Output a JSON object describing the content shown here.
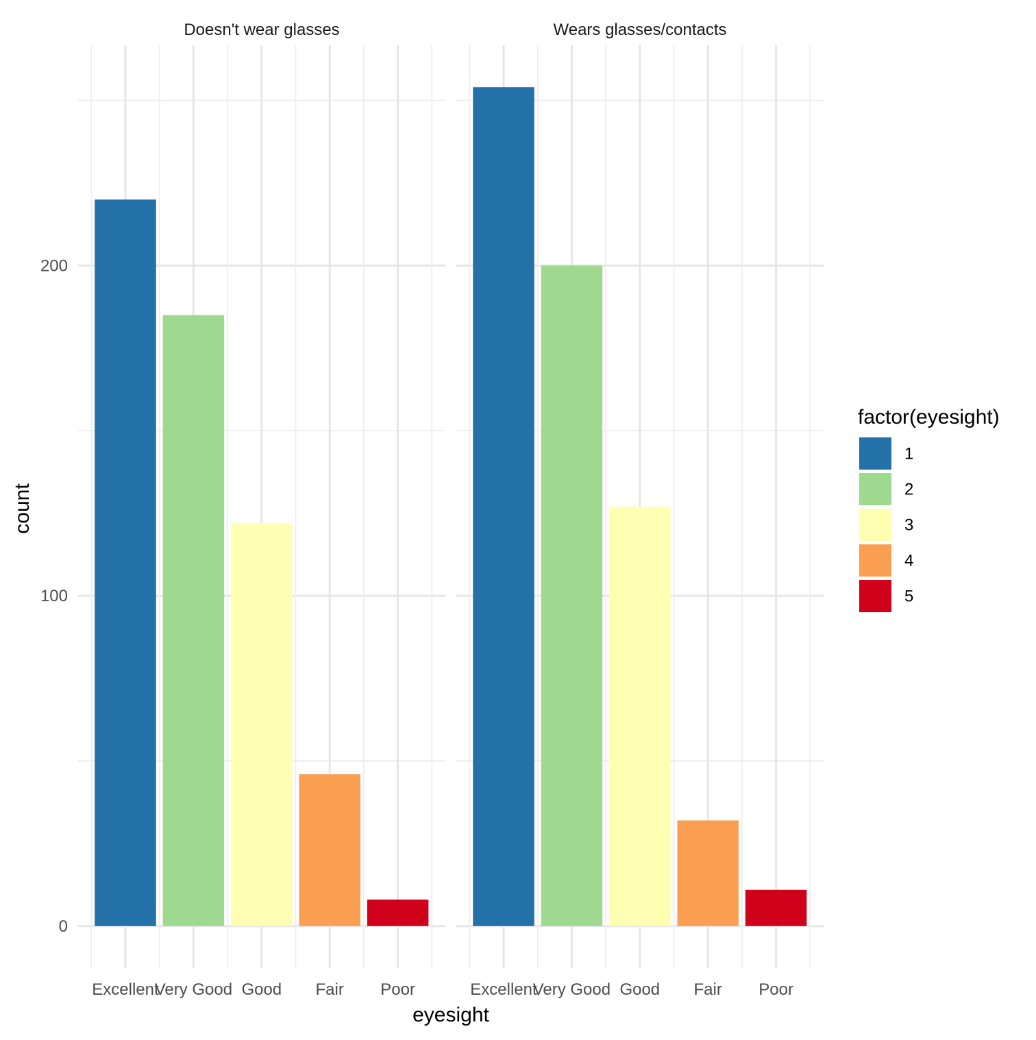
{
  "chart_data": {
    "type": "bar",
    "facet_by": "glasses",
    "categories": [
      "Excellent",
      "Very Good",
      "Good",
      "Fair",
      "Poor"
    ],
    "panels": [
      {
        "label": "Doesn't wear glasses",
        "values": [
          220,
          185,
          122,
          46,
          8
        ]
      },
      {
        "label": "Wears glasses/contacts",
        "values": [
          254,
          200,
          127,
          32,
          11
        ]
      }
    ],
    "fill_levels": [
      "1",
      "2",
      "3",
      "4",
      "5"
    ],
    "colors": [
      "#2471aa",
      "#9fd98f",
      "#ffffb2",
      "#fa9f51",
      "#d0021b"
    ],
    "xlabel": "eyesight",
    "ylabel": "count",
    "y_ticks": [
      0,
      100,
      200
    ],
    "ylim": [
      -12.7,
      266.7
    ],
    "grid": true,
    "legend": {
      "title": "factor(eyesight)",
      "position": "right",
      "labels": [
        "1",
        "2",
        "3",
        "4",
        "5"
      ]
    }
  }
}
